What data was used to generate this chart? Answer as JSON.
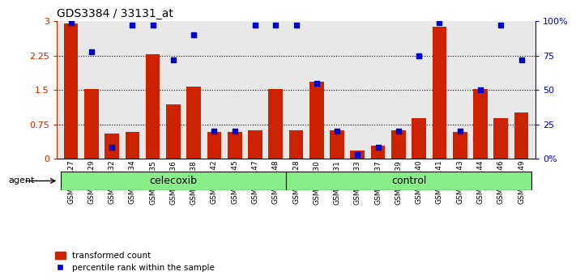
{
  "title": "GDS3384 / 33131_at",
  "samples": [
    "GSM283127",
    "GSM283129",
    "GSM283132",
    "GSM283134",
    "GSM283135",
    "GSM283136",
    "GSM283138",
    "GSM283142",
    "GSM283145",
    "GSM283147",
    "GSM283148",
    "GSM283128",
    "GSM283130",
    "GSM283131",
    "GSM283133",
    "GSM283137",
    "GSM283139",
    "GSM283140",
    "GSM283141",
    "GSM283143",
    "GSM283144",
    "GSM283146",
    "GSM283149"
  ],
  "transformed_count": [
    2.95,
    1.52,
    0.55,
    0.58,
    2.28,
    1.18,
    1.58,
    0.58,
    0.58,
    0.62,
    1.52,
    0.62,
    1.68,
    0.62,
    0.18,
    0.28,
    0.62,
    0.88,
    2.88,
    0.58,
    1.52,
    0.88,
    1.0
  ],
  "percentile_rank": [
    99,
    78,
    8,
    97,
    97,
    72,
    90,
    20,
    20,
    97,
    97,
    97,
    55,
    20,
    3,
    8,
    20,
    75,
    99,
    20,
    50,
    97,
    72
  ],
  "celecoxib_count": 11,
  "control_count": 12,
  "bar_color": "#cc2200",
  "dot_color": "#0000cc",
  "ylim_left": [
    0,
    3.0
  ],
  "ylim_right": [
    0,
    100
  ],
  "yticks_left": [
    0,
    0.75,
    1.5,
    2.25,
    3.0
  ],
  "yticks_right": [
    0,
    25,
    50,
    75,
    100
  ],
  "ytick_labels_left": [
    "0",
    "0.75",
    "1.5",
    "2.25",
    "3"
  ],
  "ytick_labels_right": [
    "0%",
    "25",
    "50",
    "75",
    "100%"
  ],
  "agent_label": "agent",
  "group1_label": "celecoxib",
  "group2_label": "control",
  "legend_red": "transformed count",
  "legend_blue": "percentile rank within the sample",
  "axis_bg_color": "#e8e8e8",
  "group_bg_color": "#88ee88",
  "left_axis_color": "#cc2200",
  "right_axis_color": "#0000cc",
  "gridline_color": "#000000",
  "xticklabel_bg": "#d0d0d0"
}
